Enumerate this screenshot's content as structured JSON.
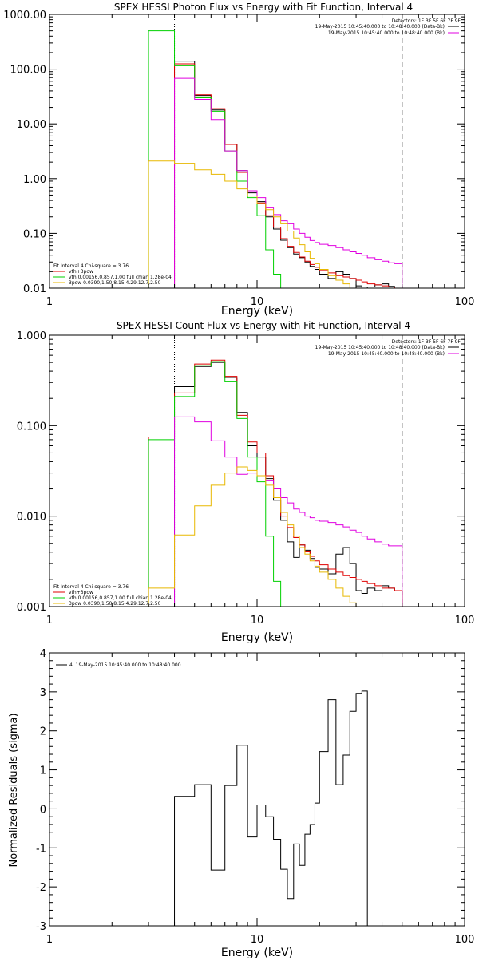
{
  "colors": {
    "black": "#000000",
    "red": "#e00000",
    "green": "#00d000",
    "magenta": "#e000e0",
    "yellow": "#e8b800"
  },
  "chart_data": [
    {
      "type": "line",
      "title": "SPEX HESSI Photon Flux vs Energy with Fit Function, Interval 4",
      "xlabel": "Energy (keV)",
      "ylabel": "",
      "xscale": "log",
      "yscale": "log",
      "xlim": [
        1,
        100
      ],
      "ylim": [
        0.01,
        1000
      ],
      "x_ticks": [
        "1",
        "10",
        "100"
      ],
      "y_ticks": [
        "0.01",
        "0.10",
        "1.00",
        "10.00",
        "100.00",
        "1000.00"
      ],
      "vlines": [
        {
          "x": 4,
          "style": "dotted"
        },
        {
          "x": 50,
          "style": "dashed"
        }
      ],
      "header_lines": [
        {
          "text": "Detectors: 1F 3F 5F 6F 7F 9F",
          "color": "#000000"
        },
        {
          "text": "19-May-2015 10:45:40.000 to 10:48:40.000 (Data-Bk)",
          "color": "#000000"
        },
        {
          "text": "19-May-2015 10:45:40.000 to 10:48:40.000 (Bk)",
          "color": "#e000e0"
        }
      ],
      "fit_legend": [
        {
          "text": "Fit Interval 4   Chi-square = 3.76",
          "color": "#000000"
        },
        {
          "text": "vth+3pow",
          "color": "#e00000"
        },
        {
          "text": "vth 0.00156,0.857,1.00  full chian 1.28e-04",
          "color": "#00d000"
        },
        {
          "text": "3pow 0.0390,1.50,8.15,4.29,12.7,2.50",
          "color": "#e8b800"
        }
      ],
      "edges": [
        3,
        4,
        5,
        6,
        7,
        8,
        9,
        10,
        11,
        12,
        13,
        14,
        15,
        16,
        17,
        18,
        19,
        20,
        22,
        24,
        26,
        28,
        30,
        32,
        34,
        37,
        40,
        43,
        46,
        50
      ],
      "series": [
        {
          "color": "#000000",
          "from": 4,
          "values": [
            140,
            33,
            18,
            4.2,
            1.4,
            0.55,
            0.38,
            0.2,
            0.12,
            0.075,
            0.055,
            0.042,
            0.036,
            0.03,
            0.025,
            0.022,
            0.018,
            0.015,
            0.02,
            0.018,
            0.015,
            0.011,
            0.0095,
            0.0105,
            0.0115,
            0.012,
            0.0108,
            0.0095
          ]
        },
        {
          "color": "#e00000",
          "from": 4,
          "values": [
            125,
            34,
            19,
            4.2,
            1.3,
            0.57,
            0.36,
            0.21,
            0.13,
            0.08,
            0.058,
            0.045,
            0.037,
            0.031,
            0.027,
            0.024,
            0.021,
            0.019,
            0.017,
            0.016,
            0.015,
            0.014,
            0.013,
            0.012,
            0.0115,
            0.011,
            0.0105,
            0.01
          ]
        },
        {
          "color": "#00d000",
          "from": 3,
          "values": [
            500,
            115,
            30,
            17,
            3.2,
            0.9,
            0.45,
            0.21,
            0.05,
            0.018,
            0.009
          ]
        },
        {
          "color": "#e000e0",
          "from": 4,
          "values": [
            68,
            28,
            12,
            3.2,
            1.4,
            0.6,
            0.45,
            0.3,
            0.22,
            0.17,
            0.15,
            0.12,
            0.1,
            0.085,
            0.074,
            0.068,
            0.063,
            0.06,
            0.055,
            0.05,
            0.046,
            0.043,
            0.04,
            0.036,
            0.033,
            0.031,
            0.029,
            0.028
          ]
        },
        {
          "color": "#e8b800",
          "from": 3,
          "values": [
            2.1,
            1.9,
            1.45,
            1.2,
            0.9,
            0.65,
            0.48,
            0.35,
            0.27,
            0.2,
            0.15,
            0.11,
            0.082,
            0.062,
            0.046,
            0.035,
            0.028,
            0.022,
            0.017,
            0.014,
            0.012,
            0.01,
            0.008
          ]
        }
      ]
    },
    {
      "type": "line",
      "title": "SPEX HESSI Count Flux vs Energy with Fit Function, Interval 4",
      "xlabel": "Energy (keV)",
      "ylabel": "",
      "xscale": "log",
      "yscale": "log",
      "xlim": [
        1,
        100
      ],
      "ylim": [
        0.001,
        1
      ],
      "x_ticks": [
        "1",
        "10",
        "100"
      ],
      "y_ticks": [
        "0.001",
        "0.010",
        "0.100",
        "1.000"
      ],
      "vlines": [
        {
          "x": 4,
          "style": "dotted"
        },
        {
          "x": 50,
          "style": "dashed"
        }
      ],
      "header_lines": [
        {
          "text": "Detectors: 1F 3F 5F 6F 7F 9F",
          "color": "#000000"
        },
        {
          "text": "19-May-2015 10:45:40.000 to 10:48:40.000 (Data-Bk)",
          "color": "#000000"
        },
        {
          "text": "19-May-2015 10:45:40.000 to 10:48:40.000 (Bk)",
          "color": "#e000e0"
        }
      ],
      "fit_legend": [
        {
          "text": "Fit Interval 4   Chi-square = 3.76",
          "color": "#000000"
        },
        {
          "text": "vth+3pow",
          "color": "#e00000"
        },
        {
          "text": "vth 0.00156,0.857,1.00  full chian 1.28e-04",
          "color": "#00d000"
        },
        {
          "text": "3pow 0.0390,1.50,8.15,4.29,12.7,2.50",
          "color": "#e8b800"
        }
      ],
      "edges": [
        3,
        4,
        5,
        6,
        7,
        8,
        9,
        10,
        11,
        12,
        13,
        14,
        15,
        16,
        17,
        18,
        19,
        20,
        22,
        24,
        26,
        28,
        30,
        32,
        34,
        37,
        40,
        43,
        46,
        50
      ],
      "series": [
        {
          "color": "#000000",
          "from": 4,
          "values": [
            0.27,
            0.45,
            0.5,
            0.34,
            0.14,
            0.06,
            0.045,
            0.026,
            0.015,
            0.009,
            0.0052,
            0.0035,
            0.0048,
            0.0042,
            0.0034,
            0.0027,
            0.0026,
            0.0023,
            0.0038,
            0.0045,
            0.003,
            0.0015,
            0.0014,
            0.0016,
            0.0015,
            0.0017,
            0.0016,
            0.0015
          ]
        },
        {
          "color": "#e00000",
          "from": 3,
          "values": [
            0.075,
            0.23,
            0.48,
            0.53,
            0.35,
            0.13,
            0.066,
            0.05,
            0.028,
            0.016,
            0.01,
            0.0075,
            0.0058,
            0.0048,
            0.0041,
            0.0036,
            0.0032,
            0.0029,
            0.0026,
            0.0024,
            0.0022,
            0.0021,
            0.002,
            0.0019,
            0.0018,
            0.0017,
            0.0016,
            0.0016,
            0.0015
          ]
        },
        {
          "color": "#00d000",
          "from": 3,
          "values": [
            0.07,
            0.21,
            0.46,
            0.51,
            0.31,
            0.12,
            0.045,
            0.024,
            0.006,
            0.0019,
            0.0008
          ]
        },
        {
          "color": "#e000e0",
          "from": 4,
          "values": [
            0.125,
            0.11,
            0.068,
            0.045,
            0.029,
            0.03,
            0.028,
            0.025,
            0.02,
            0.016,
            0.014,
            0.012,
            0.011,
            0.01,
            0.0096,
            0.009,
            0.0088,
            0.0085,
            0.008,
            0.0076,
            0.007,
            0.0066,
            0.006,
            0.0056,
            0.0052,
            0.0049,
            0.0047,
            0.0047
          ]
        },
        {
          "color": "#e8b800",
          "from": 3,
          "values": [
            0.0016,
            0.0062,
            0.013,
            0.022,
            0.03,
            0.035,
            0.032,
            0.028,
            0.022,
            0.016,
            0.011,
            0.008,
            0.006,
            0.0045,
            0.0038,
            0.0032,
            0.0028,
            0.0024,
            0.002,
            0.0016,
            0.0013,
            0.0011,
            0.001,
            0.0009
          ]
        }
      ]
    },
    {
      "type": "line",
      "title": "",
      "xlabel": "Energy (keV)",
      "ylabel": "Normalized Residuals (sigma)",
      "xscale": "log",
      "yscale": "linear",
      "xlim": [
        1,
        100
      ],
      "ylim": [
        -3,
        4
      ],
      "x_ticks": [
        "1",
        "10",
        "100"
      ],
      "y_ticks": [
        "-3",
        "-2",
        "-1",
        "0",
        "1",
        "2",
        "3",
        "4"
      ],
      "legend": [
        {
          "text": "4. 19-May-2015 10:45:40.000 to 10:48:40.000",
          "color": "#000000"
        }
      ],
      "edges": [
        4,
        5,
        6,
        7,
        8,
        9,
        10,
        11,
        12,
        13,
        14,
        15,
        16,
        17,
        18,
        19,
        20,
        22,
        24,
        26,
        28,
        30,
        32,
        34,
        37,
        40,
        43,
        46,
        50
      ],
      "series": [
        {
          "color": "#000000",
          "from": 4,
          "drop_from": -3,
          "drop_to": -3,
          "values": [
            0.32,
            0.62,
            -1.57,
            0.6,
            1.63,
            -0.72,
            0.1,
            -0.2,
            -0.78,
            -1.55,
            -2.3,
            -0.9,
            -1.45,
            -0.65,
            -0.4,
            0.15,
            1.47,
            2.8,
            0.62,
            1.38,
            2.5,
            2.96,
            3.02
          ]
        }
      ]
    }
  ]
}
